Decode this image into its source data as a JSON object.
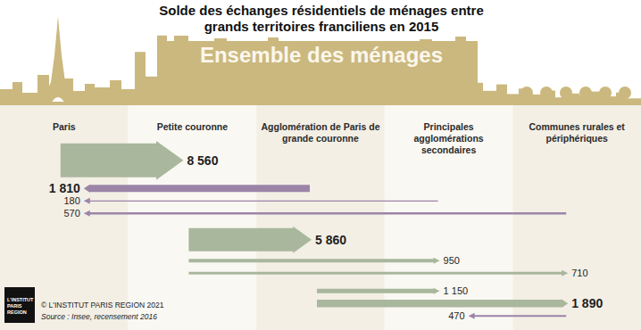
{
  "chart_data": {
    "type": "flow",
    "title": "Solde des échanges résidentiels de ménages entre grands territoires franciliens en 2015",
    "subtitle": "Ensemble des ménages",
    "categories": [
      "Paris",
      "Petite couronne",
      "Agglomération de Paris de grande couronne",
      "Principales agglomérations secondaires",
      "Communes rurales et périphériques"
    ],
    "data_labels": true,
    "groups": [
      {
        "flows": [
          {
            "from": 0,
            "to": 1,
            "value": 8560,
            "value_label": "8 560",
            "color": "#a9b79d"
          },
          {
            "from": 2,
            "to": 0,
            "value": 1810,
            "value_label": "1 810",
            "color": "#9c84a8"
          },
          {
            "from": 3,
            "to": 0,
            "value": 180,
            "color": "#9c84a8"
          },
          {
            "from": 4,
            "to": 0,
            "value": 570,
            "color": "#9c84a8"
          }
        ]
      },
      {
        "flows": [
          {
            "from": 1,
            "to": 2,
            "value": 5860,
            "value_label": "5 860",
            "color": "#a9b79d"
          },
          {
            "from": 1,
            "to": 3,
            "value": 950,
            "color": "#a9b79d"
          },
          {
            "from": 1,
            "to": 4,
            "value": 710,
            "color": "#a9b79d"
          }
        ]
      },
      {
        "flows": [
          {
            "from": 2,
            "to": 3,
            "value": 1150,
            "value_label": "1 150",
            "color": "#a9b79d"
          },
          {
            "from": 2,
            "to": 4,
            "value": 1890,
            "value_label": "1 890",
            "color": "#a9b79d"
          },
          {
            "from": 4,
            "to": 3,
            "value": 470,
            "color": "#9c84a8"
          }
        ]
      }
    ],
    "credit": "© L'INSTITUT PARIS REGION 2021",
    "source": "Source : Insee, recensement 2016",
    "logo": [
      "L'INSTITUT",
      "PARIS",
      "REGION"
    ]
  }
}
